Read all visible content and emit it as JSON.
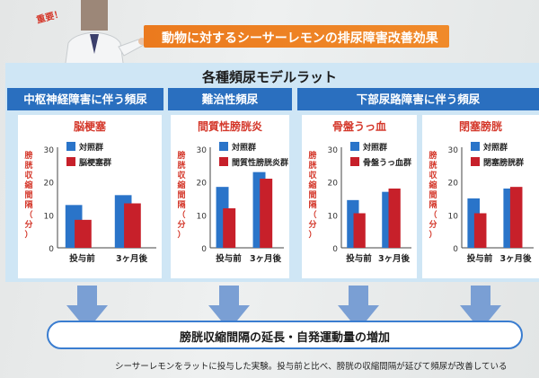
{
  "badge": "重要！",
  "headline": "動物に対するシーサーレモンの排尿障害改善効果",
  "main_title": "各種頻尿モデルラット",
  "categories": [
    "中枢神経障害に伴う頻尿",
    "難治性頻尿",
    "下部尿路障害に伴う頻尿"
  ],
  "result": "膀胱収縮間隔の延長・自発運動量の増加",
  "caption": "シーサーレモンをラットに投与した実験。投与前と比べ、膀胱の収縮間隔が延びて頻尿が改善している",
  "colors": {
    "control": "#2a74c9",
    "model": "#c7202a",
    "category_bar": "#2a6fbf",
    "headline": "#eb7a1e",
    "title_red": "#d4372a",
    "arrow": "#7a9fd4"
  },
  "chart_data": [
    {
      "type": "bar",
      "title": "脳梗塞",
      "ylabel": "膀胱収縮間隔（分）",
      "ylim": [
        0,
        30
      ],
      "yticks": [
        0,
        10,
        20,
        30
      ],
      "categories": [
        "投与前",
        "3ヶ月後"
      ],
      "series": [
        {
          "name": "対照群",
          "values": [
            13,
            16
          ]
        },
        {
          "name": "脳梗塞群",
          "values": [
            8.5,
            13.5
          ]
        }
      ]
    },
    {
      "type": "bar",
      "title": "間質性膀胱炎",
      "ylabel": "膀胱収縮間隔（分）",
      "ylim": [
        0,
        30
      ],
      "yticks": [
        0,
        10,
        20,
        30
      ],
      "categories": [
        "投与前",
        "3ヶ月後"
      ],
      "series": [
        {
          "name": "対照群",
          "values": [
            18.5,
            23
          ]
        },
        {
          "name": "間質性膀胱炎群",
          "values": [
            12,
            21
          ]
        }
      ]
    },
    {
      "type": "bar",
      "title": "骨盤うっ血",
      "ylabel": "膀胱収縮間隔（分）",
      "ylim": [
        0,
        30
      ],
      "yticks": [
        0,
        10,
        20,
        30
      ],
      "categories": [
        "投与前",
        "3ヶ月後"
      ],
      "series": [
        {
          "name": "対照群",
          "values": [
            14.5,
            17
          ]
        },
        {
          "name": "骨盤うっ血群",
          "values": [
            10.5,
            18
          ]
        }
      ]
    },
    {
      "type": "bar",
      "title": "閉塞膀胱",
      "ylabel": "膀胱収縮間隔（分）",
      "ylim": [
        0,
        30
      ],
      "yticks": [
        0,
        10,
        20,
        30
      ],
      "categories": [
        "投与前",
        "3ヶ月後"
      ],
      "series": [
        {
          "name": "対照群",
          "values": [
            15,
            18
          ]
        },
        {
          "name": "閉塞膀胱群",
          "values": [
            10.5,
            18.5
          ]
        }
      ]
    }
  ]
}
